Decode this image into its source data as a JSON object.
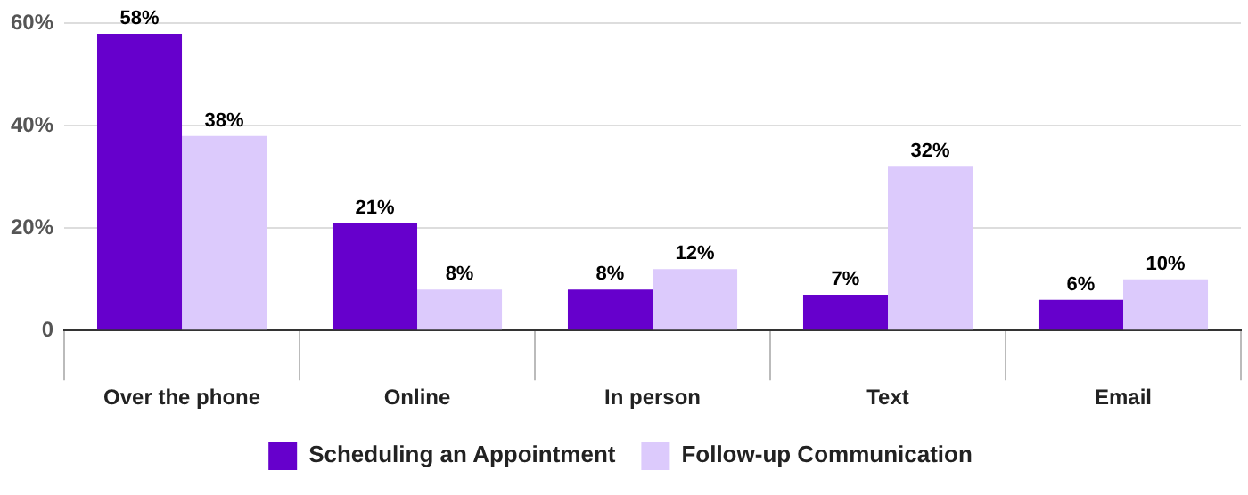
{
  "chart_data": {
    "type": "bar",
    "categories": [
      "Over the phone",
      "Online",
      "In person",
      "Text",
      "Email"
    ],
    "series": [
      {
        "name": "Scheduling an Appointment",
        "color": "#6600cc",
        "values": [
          58,
          21,
          8,
          7,
          6
        ],
        "value_labels": [
          "58%",
          "21%",
          "8%",
          "7%",
          "6%"
        ]
      },
      {
        "name": "Follow-up Communication",
        "color": "#dccafc",
        "values": [
          38,
          8,
          12,
          32,
          10
        ],
        "value_labels": [
          "38%",
          "8%",
          "12%",
          "32%",
          "10%"
        ]
      }
    ],
    "ylim": [
      0,
      60
    ],
    "yticks": [
      0,
      {
        "value": 20,
        "label": "20%"
      },
      {
        "value": 40,
        "label": "40%"
      },
      {
        "value": 60,
        "label": "60%"
      }
    ],
    "grid": "y",
    "legend": "bottom"
  }
}
